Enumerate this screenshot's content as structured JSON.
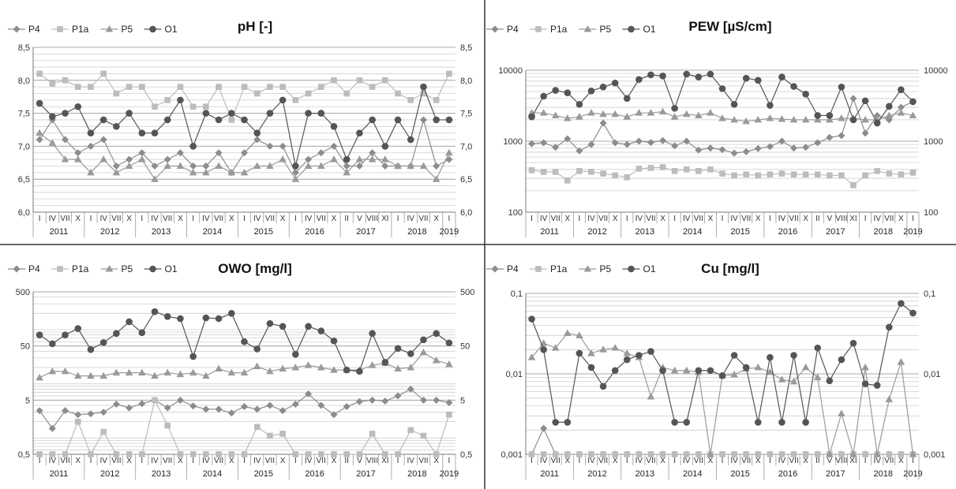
{
  "chart_data": [
    {
      "type": "line",
      "title": "pH [-]",
      "scale": "linear",
      "ylim": [
        6.0,
        8.5
      ],
      "yticks": [
        "6,0",
        "6,5",
        "7,0",
        "7,5",
        "8,0",
        "8,5"
      ],
      "yticks_values": [
        6.0,
        6.5,
        7.0,
        7.5,
        8.0,
        8.5
      ],
      "x_labels": [
        "I",
        "IV",
        "VII",
        "X",
        "I",
        "IV",
        "VII",
        "X",
        "I",
        "IV",
        "VII",
        "X",
        "I",
        "IV",
        "VII",
        "X",
        "I",
        "IV",
        "VII",
        "X",
        "I",
        "IV",
        "VII",
        "X",
        "II",
        "V",
        "VIII",
        "XI",
        "I",
        "IV",
        "VII",
        "X",
        "I"
      ],
      "years": [
        "2011",
        "2012",
        "2013",
        "2014",
        "2015",
        "2016",
        "2017",
        "2018",
        "2019"
      ],
      "legend": [
        "P4",
        "P1a",
        "P5",
        "O1"
      ],
      "series": [
        {
          "name": "P4",
          "values": [
            7.1,
            7.4,
            7.1,
            6.9,
            7.0,
            7.1,
            6.7,
            6.8,
            6.9,
            6.7,
            6.8,
            6.9,
            6.7,
            6.7,
            6.9,
            6.6,
            6.9,
            7.1,
            7.0,
            7.0,
            6.6,
            6.8,
            6.9,
            7.0,
            6.7,
            6.7,
            6.9,
            6.7,
            6.7,
            6.7,
            7.4,
            6.7,
            6.8
          ]
        },
        {
          "name": "P1a",
          "values": [
            8.1,
            7.95,
            8.0,
            7.9,
            7.9,
            8.1,
            7.8,
            7.9,
            7.9,
            7.6,
            7.7,
            7.9,
            7.6,
            7.6,
            7.9,
            7.4,
            7.9,
            7.8,
            7.9,
            7.9,
            7.7,
            7.8,
            7.9,
            8.0,
            7.8,
            8.0,
            7.9,
            8.0,
            7.8,
            7.7,
            7.8,
            7.7,
            8.1
          ]
        },
        {
          "name": "P5",
          "values": [
            7.2,
            7.05,
            6.8,
            6.8,
            6.6,
            6.8,
            6.6,
            6.7,
            6.8,
            6.5,
            6.7,
            6.7,
            6.6,
            6.6,
            6.7,
            6.6,
            6.6,
            6.7,
            6.7,
            6.8,
            6.5,
            6.7,
            6.7,
            6.8,
            6.6,
            6.8,
            6.8,
            6.8,
            6.7,
            6.7,
            6.7,
            6.5,
            6.9
          ]
        },
        {
          "name": "O1",
          "values": [
            7.65,
            7.45,
            7.5,
            7.6,
            7.2,
            7.4,
            7.3,
            7.5,
            7.2,
            7.2,
            7.4,
            7.7,
            7.0,
            7.5,
            7.4,
            7.5,
            7.4,
            7.2,
            7.5,
            7.7,
            6.7,
            7.5,
            7.5,
            7.3,
            6.8,
            7.2,
            7.4,
            7.0,
            7.4,
            7.1,
            7.9,
            7.4,
            7.4
          ]
        }
      ]
    },
    {
      "type": "line",
      "title": "PEW [µS/cm]",
      "scale": "log",
      "ylim": [
        100,
        10000
      ],
      "yticks": [
        "100",
        "1000",
        "10000"
      ],
      "yticks_values": [
        100,
        1000,
        10000
      ],
      "x_labels": [
        "I",
        "IV",
        "VII",
        "X",
        "I",
        "IV",
        "VII",
        "X",
        "I",
        "IV",
        "VII",
        "X",
        "I",
        "IV",
        "VII",
        "X",
        "I",
        "IV",
        "VII",
        "X",
        "I",
        "IV",
        "VII",
        "X",
        "II",
        "V",
        "VIII",
        "XI",
        "I",
        "IV",
        "VII",
        "X",
        "I"
      ],
      "years": [
        "2011",
        "2012",
        "2013",
        "2014",
        "2015",
        "2016",
        "2017",
        "2018",
        "2019"
      ],
      "legend": [
        "P4",
        "P1a",
        "P5",
        "O1"
      ],
      "series": [
        {
          "name": "P4",
          "values": [
            920,
            950,
            820,
            1080,
            730,
            900,
            1800,
            950,
            900,
            1000,
            960,
            1020,
            860,
            1000,
            750,
            800,
            760,
            680,
            710,
            790,
            840,
            1000,
            800,
            820,
            950,
            1130,
            1200,
            4000,
            1300,
            2300,
            2000,
            3000,
            3600
          ]
        },
        {
          "name": "P1a",
          "values": [
            390,
            370,
            370,
            280,
            380,
            370,
            350,
            330,
            310,
            410,
            420,
            430,
            380,
            400,
            380,
            400,
            350,
            330,
            340,
            330,
            340,
            350,
            340,
            340,
            340,
            330,
            330,
            240,
            330,
            380,
            350,
            340,
            360
          ]
        },
        {
          "name": "P5",
          "values": [
            2500,
            2500,
            2300,
            2100,
            2200,
            2500,
            2400,
            2400,
            2200,
            2500,
            2500,
            2600,
            2200,
            2400,
            2300,
            2500,
            2100,
            2000,
            1900,
            2000,
            2100,
            2050,
            2000,
            2000,
            2000,
            2000,
            2100,
            2100,
            2000,
            2000,
            2300,
            2500,
            2300
          ]
        },
        {
          "name": "O1",
          "values": [
            2200,
            4300,
            5200,
            4800,
            3300,
            5100,
            5800,
            6600,
            4000,
            7400,
            8600,
            8300,
            2900,
            8800,
            8000,
            8800,
            5500,
            3300,
            7700,
            7200,
            3200,
            8000,
            5900,
            4600,
            2300,
            2300,
            5800,
            2000,
            3700,
            1800,
            3100,
            5300,
            3600
          ]
        }
      ]
    },
    {
      "type": "line",
      "title": "OWO [mg/l]",
      "scale": "log",
      "ylim": [
        0.5,
        500
      ],
      "yticks": [
        "0,5",
        "5",
        "50",
        "500"
      ],
      "yticks_values": [
        0.5,
        5,
        50,
        500
      ],
      "x_labels": [
        "I",
        "IV",
        "VII",
        "X",
        "I",
        "IV",
        "VII",
        "X",
        "I",
        "IV",
        "VII",
        "X",
        "I",
        "IV",
        "VII",
        "X",
        "I",
        "IV",
        "VII",
        "X",
        "I",
        "IV",
        "VII",
        "X",
        "II",
        "V",
        "VIII",
        "XI",
        "I",
        "IV",
        "VII",
        "X",
        "I"
      ],
      "years": [
        "2011",
        "2012",
        "2013",
        "2014",
        "2015",
        "2016",
        "2017",
        "2018",
        "2019"
      ],
      "legend": [
        "P4",
        "P1a",
        "P5",
        "O1"
      ],
      "series": [
        {
          "name": "P4",
          "values": [
            3.2,
            1.5,
            3.2,
            2.7,
            2.8,
            3.0,
            4.2,
            3.6,
            4.3,
            5.0,
            3.6,
            5.0,
            3.9,
            3.4,
            3.4,
            2.9,
            3.8,
            3.4,
            4.0,
            3.2,
            4.2,
            6.5,
            4.0,
            2.7,
            3.8,
            4.7,
            5.0,
            4.8,
            6.0,
            8.0,
            5.0,
            5.0,
            4.5
          ]
        },
        {
          "name": "P1a",
          "values": [
            0.5,
            0.5,
            0.5,
            2.0,
            0.5,
            1.3,
            0.5,
            0.5,
            0.5,
            5.0,
            1.7,
            0.5,
            0.5,
            0.5,
            0.5,
            0.5,
            0.5,
            1.6,
            1.1,
            1.2,
            0.5,
            0.5,
            0.5,
            0.5,
            0.5,
            0.5,
            1.2,
            0.5,
            0.5,
            1.4,
            1.1,
            0.5,
            2.7
          ]
        },
        {
          "name": "P5",
          "values": [
            13,
            17,
            17,
            14,
            14,
            14,
            16,
            16,
            16,
            14,
            16,
            15,
            16,
            14,
            19,
            16,
            16,
            21,
            17,
            19,
            20,
            22,
            20,
            18,
            18,
            18,
            22,
            24,
            19,
            20,
            38,
            27,
            23
          ]
        },
        {
          "name": "O1",
          "values": [
            80,
            55,
            80,
            105,
            43,
            58,
            85,
            140,
            88,
            215,
            175,
            160,
            32,
            165,
            160,
            200,
            60,
            44,
            130,
            115,
            35,
            115,
            95,
            62,
            18,
            17,
            85,
            25,
            45,
            36,
            65,
            85,
            57
          ]
        }
      ]
    },
    {
      "type": "line",
      "title": "Cu [mg/l]",
      "scale": "log",
      "ylim": [
        0.001,
        0.1
      ],
      "yticks": [
        "0,001",
        "0,01",
        "0,1"
      ],
      "yticks_values": [
        0.001,
        0.01,
        0.1
      ],
      "x_labels": [
        "I",
        "IV",
        "VII",
        "X",
        "I",
        "IV",
        "VII",
        "X",
        "I",
        "IV",
        "VII",
        "X",
        "I",
        "IV",
        "VII",
        "X",
        "I",
        "IV",
        "VII",
        "X",
        "I",
        "IV",
        "VII",
        "X",
        "II",
        "V",
        "VIII",
        "XI",
        "I",
        "IV",
        "VII",
        "X",
        "I"
      ],
      "years": [
        "2011",
        "2012",
        "2013",
        "2014",
        "2015",
        "2016",
        "2017",
        "2018",
        "2019"
      ],
      "legend": [
        "P4",
        "P1a",
        "P5",
        "O1"
      ],
      "series": [
        {
          "name": "P4",
          "values": [
            0.001,
            0.0021,
            0.001,
            0.001,
            0.001,
            0.001,
            0.001,
            0.001,
            0.001,
            0.001,
            0.001,
            0.001,
            0.001,
            0.001,
            0.001,
            0.001,
            0.001,
            0.001,
            0.001,
            0.001,
            0.001,
            0.001,
            0.001,
            0.001,
            0.001,
            0.001,
            0.001,
            0.001,
            0.001,
            0.001,
            0.001,
            0.001,
            0.001
          ]
        },
        {
          "name": "P1a",
          "values": [
            0.001,
            0.001,
            0.001,
            0.001,
            0.001,
            0.001,
            0.001,
            0.001,
            0.001,
            0.001,
            0.001,
            0.001,
            0.001,
            0.001,
            0.001,
            0.001,
            0.001,
            0.001,
            0.001,
            0.001,
            0.001,
            0.001,
            0.001,
            0.001,
            0.001,
            0.001,
            0.001,
            0.001,
            0.001,
            0.001,
            0.001,
            0.001,
            0.001
          ]
        },
        {
          "name": "P5",
          "values": [
            0.016,
            0.024,
            0.021,
            0.032,
            0.03,
            0.018,
            0.02,
            0.021,
            0.018,
            0.016,
            0.0052,
            0.012,
            0.011,
            0.011,
            0.0105,
            0.001,
            0.0095,
            0.0098,
            0.0115,
            0.012,
            0.0105,
            0.0085,
            0.008,
            0.012,
            0.009,
            0.001,
            0.0032,
            0.001,
            0.012,
            0.001,
            0.0048,
            0.014,
            0.001
          ]
        },
        {
          "name": "O1",
          "values": [
            0.048,
            0.02,
            0.0025,
            0.0025,
            0.018,
            0.012,
            0.007,
            0.011,
            0.015,
            0.017,
            0.019,
            0.011,
            0.0025,
            0.0025,
            0.011,
            0.011,
            0.0095,
            0.017,
            0.012,
            0.0025,
            0.016,
            0.0025,
            0.017,
            0.0025,
            0.021,
            0.0082,
            0.015,
            0.024,
            0.0075,
            0.0072,
            0.038,
            0.075,
            0.057
          ]
        }
      ]
    }
  ]
}
